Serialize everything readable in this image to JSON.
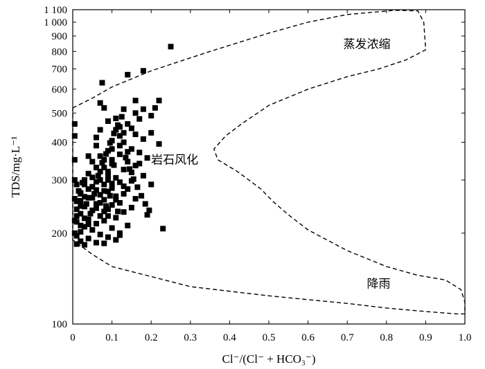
{
  "chart_data": {
    "type": "scatter",
    "title": "",
    "xlabel": "Cl⁻/(Cl⁻ + HCO₃⁻)",
    "ylabel": "TDS/mg·L⁻¹",
    "xlim": [
      0,
      1.0
    ],
    "ylim": [
      100,
      1100
    ],
    "yscale": "log",
    "grid": false,
    "x_ticks": [
      {
        "value": 0,
        "label": "0"
      },
      {
        "value": 0.1,
        "label": "0.1"
      },
      {
        "value": 0.2,
        "label": "0.2"
      },
      {
        "value": 0.3,
        "label": "0.3"
      },
      {
        "value": 0.4,
        "label": "0.4"
      },
      {
        "value": 0.5,
        "label": "0.5"
      },
      {
        "value": 0.6,
        "label": "0.6"
      },
      {
        "value": 0.7,
        "label": "0.7"
      },
      {
        "value": 0.8,
        "label": "0.8"
      },
      {
        "value": 0.9,
        "label": "0.9"
      },
      {
        "value": 1.0,
        "label": "1.0"
      }
    ],
    "y_ticks": [
      {
        "value": 100,
        "label": "100"
      },
      {
        "value": 200,
        "label": "200"
      },
      {
        "value": 300,
        "label": "300"
      },
      {
        "value": 400,
        "label": "400"
      },
      {
        "value": 500,
        "label": "500"
      },
      {
        "value": 600,
        "label": "600"
      },
      {
        "value": 700,
        "label": "700"
      },
      {
        "value": 800,
        "label": "800"
      },
      {
        "value": 900,
        "label": "900"
      },
      {
        "value": 1000,
        "label": "1 000"
      },
      {
        "value": 1100,
        "label": "1 100"
      }
    ],
    "regions": [
      {
        "label": "蒸发浓缩",
        "x": 0.75,
        "y": 820
      },
      {
        "label": "岩石风化",
        "x": 0.26,
        "y": 340
      },
      {
        "label": "降雨",
        "x": 0.78,
        "y": 132
      }
    ],
    "boundary": [
      [
        0.0,
        520
      ],
      [
        0.05,
        560
      ],
      [
        0.1,
        610
      ],
      [
        0.2,
        690
      ],
      [
        0.35,
        800
      ],
      [
        0.5,
        920
      ],
      [
        0.6,
        1000
      ],
      [
        0.7,
        1060
      ],
      [
        0.82,
        1095
      ],
      [
        0.88,
        1090
      ],
      [
        0.895,
        1000
      ],
      [
        0.9,
        810
      ],
      [
        0.85,
        750
      ],
      [
        0.78,
        700
      ],
      [
        0.7,
        660
      ],
      [
        0.6,
        600
      ],
      [
        0.5,
        530
      ],
      [
        0.43,
        460
      ],
      [
        0.39,
        420
      ],
      [
        0.36,
        380
      ],
      [
        0.37,
        350
      ],
      [
        0.42,
        320
      ],
      [
        0.48,
        280
      ],
      [
        0.51,
        255
      ],
      [
        0.55,
        230
      ],
      [
        0.6,
        205
      ],
      [
        0.7,
        175
      ],
      [
        0.8,
        155
      ],
      [
        0.88,
        145
      ],
      [
        0.95,
        140
      ],
      [
        0.99,
        130
      ],
      [
        1.0,
        118
      ],
      [
        1.0,
        108
      ],
      [
        0.98,
        108
      ],
      [
        0.9,
        110
      ],
      [
        0.8,
        113
      ],
      [
        0.7,
        117
      ],
      [
        0.5,
        124
      ],
      [
        0.3,
        133
      ],
      [
        0.1,
        155
      ],
      [
        0.05,
        170
      ],
      [
        0.0,
        190
      ]
    ],
    "points": [
      [
        0.25,
        830
      ],
      [
        0.18,
        690
      ],
      [
        0.14,
        670
      ],
      [
        0.075,
        630
      ],
      [
        0.22,
        550
      ],
      [
        0.16,
        550
      ],
      [
        0.21,
        520
      ],
      [
        0.18,
        515
      ],
      [
        0.13,
        515
      ],
      [
        0.08,
        520
      ],
      [
        0.07,
        540
      ],
      [
        0.2,
        490
      ],
      [
        0.16,
        500
      ],
      [
        0.11,
        480
      ],
      [
        0.09,
        470
      ],
      [
        0.005,
        460
      ],
      [
        0.12,
        450
      ],
      [
        0.15,
        445
      ],
      [
        0.07,
        440
      ],
      [
        0.2,
        430
      ],
      [
        0.005,
        420
      ],
      [
        0.18,
        410
      ],
      [
        0.1,
        405
      ],
      [
        0.13,
        400
      ],
      [
        0.22,
        395
      ],
      [
        0.06,
        390
      ],
      [
        0.15,
        380
      ],
      [
        0.09,
        375
      ],
      [
        0.17,
        370
      ],
      [
        0.12,
        365
      ],
      [
        0.04,
        360
      ],
      [
        0.19,
        355
      ],
      [
        0.08,
        350
      ],
      [
        0.14,
        345
      ],
      [
        0.005,
        350
      ],
      [
        0.1,
        340
      ],
      [
        0.16,
        335
      ],
      [
        0.06,
        330
      ],
      [
        0.13,
        325
      ],
      [
        0.09,
        320
      ],
      [
        0.18,
        310
      ],
      [
        0.11,
        305
      ],
      [
        0.07,
        300
      ],
      [
        0.15,
        298
      ],
      [
        0.03,
        300
      ],
      [
        0.12,
        295
      ],
      [
        0.08,
        290
      ],
      [
        0.2,
        290
      ],
      [
        0.05,
        285
      ],
      [
        0.1,
        282
      ],
      [
        0.14,
        280
      ],
      [
        0.06,
        278
      ],
      [
        0.09,
        275
      ],
      [
        0.02,
        272
      ],
      [
        0.13,
        270
      ],
      [
        0.07,
        268
      ],
      [
        0.11,
        265
      ],
      [
        0.04,
        262
      ],
      [
        0.16,
        260
      ],
      [
        0.08,
        258
      ],
      [
        0.01,
        255
      ],
      [
        0.12,
        252
      ],
      [
        0.06,
        250
      ],
      [
        0.1,
        248
      ],
      [
        0.03,
        245
      ],
      [
        0.15,
        243
      ],
      [
        0.09,
        240
      ],
      [
        0.05,
        238
      ],
      [
        0.13,
        235
      ],
      [
        0.02,
        232
      ],
      [
        0.19,
        230
      ],
      [
        0.07,
        228
      ],
      [
        0.11,
        225
      ],
      [
        0.04,
        222
      ],
      [
        0.08,
        220
      ],
      [
        0.01,
        218
      ],
      [
        0.06,
        215
      ],
      [
        0.14,
        212
      ],
      [
        0.03,
        210
      ],
      [
        0.1,
        208
      ],
      [
        0.23,
        207
      ],
      [
        0.05,
        205
      ],
      [
        0.02,
        202
      ],
      [
        0.12,
        200
      ],
      [
        0.07,
        198
      ],
      [
        0.01,
        196
      ],
      [
        0.09,
        194
      ],
      [
        0.04,
        192
      ],
      [
        0.11,
        190
      ],
      [
        0.02,
        188
      ],
      [
        0.06,
        186
      ],
      [
        0.01,
        184
      ],
      [
        0.03,
        183
      ],
      [
        0.08,
        185
      ],
      [
        0.12,
        197
      ],
      [
        0.1,
        292
      ],
      [
        0.09,
        310
      ],
      [
        0.08,
        330
      ],
      [
        0.07,
        360
      ],
      [
        0.1,
        380
      ],
      [
        0.12,
        420
      ],
      [
        0.11,
        440
      ],
      [
        0.14,
        460
      ],
      [
        0.06,
        415
      ],
      [
        0.05,
        345
      ],
      [
        0.04,
        315
      ],
      [
        0.03,
        290
      ],
      [
        0.02,
        270
      ],
      [
        0.05,
        262
      ],
      [
        0.06,
        242
      ],
      [
        0.08,
        236
      ],
      [
        0.09,
        228
      ],
      [
        0.04,
        214
      ],
      [
        0.03,
        224
      ],
      [
        0.02,
        246
      ],
      [
        0.07,
        252
      ],
      [
        0.11,
        258
      ],
      [
        0.13,
        286
      ],
      [
        0.15,
        318
      ],
      [
        0.17,
        340
      ],
      [
        0.14,
        372
      ],
      [
        0.12,
        390
      ],
      [
        0.1,
        350
      ],
      [
        0.09,
        300
      ],
      [
        0.08,
        276
      ],
      [
        0.06,
        296
      ],
      [
        0.07,
        320
      ],
      [
        0.05,
        306
      ],
      [
        0.04,
        280
      ],
      [
        0.03,
        264
      ],
      [
        0.02,
        256
      ],
      [
        0.01,
        240
      ],
      [
        0.01,
        228
      ],
      [
        0.02,
        212
      ],
      [
        0.005,
        200
      ],
      [
        0.005,
        220
      ],
      [
        0.005,
        260
      ],
      [
        0.005,
        300
      ],
      [
        0.01,
        290
      ],
      [
        0.015,
        276
      ],
      [
        0.025,
        294
      ],
      [
        0.035,
        250
      ],
      [
        0.045,
        232
      ],
      [
        0.055,
        270
      ],
      [
        0.065,
        310
      ],
      [
        0.075,
        342
      ],
      [
        0.085,
        366
      ],
      [
        0.095,
        398
      ],
      [
        0.105,
        428
      ],
      [
        0.115,
        456
      ],
      [
        0.125,
        486
      ],
      [
        0.135,
        356
      ],
      [
        0.145,
        326
      ],
      [
        0.155,
        302
      ],
      [
        0.165,
        284
      ],
      [
        0.175,
        266
      ],
      [
        0.185,
        250
      ],
      [
        0.195,
        238
      ],
      [
        0.16,
        425
      ],
      [
        0.17,
        478
      ],
      [
        0.13,
        430
      ],
      [
        0.105,
        336
      ],
      [
        0.095,
        266
      ],
      [
        0.085,
        246
      ],
      [
        0.115,
        236
      ]
    ]
  }
}
